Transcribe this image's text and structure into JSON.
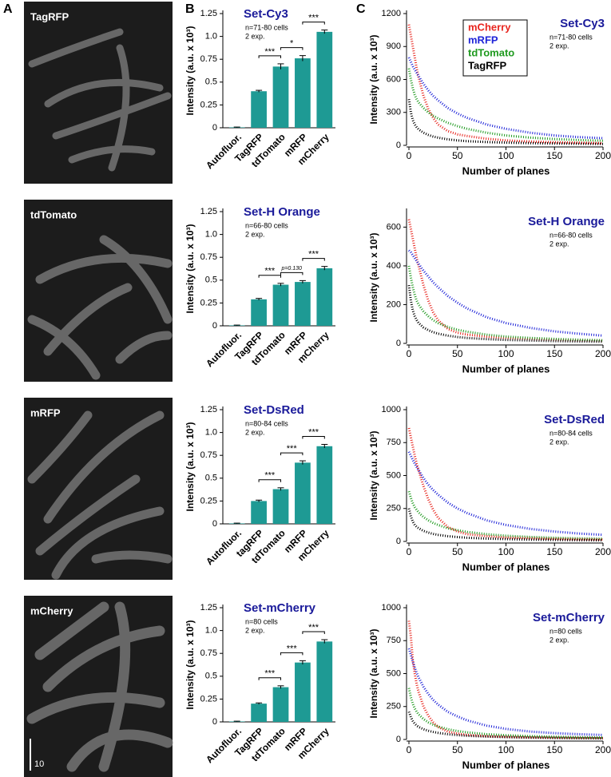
{
  "panels": [
    "A",
    "B",
    "C"
  ],
  "images": [
    {
      "label": "TagRFP"
    },
    {
      "label": "tdTomato"
    },
    {
      "label": "mRFP"
    },
    {
      "label": "mCherry"
    }
  ],
  "scale_bar": "10",
  "chart_data": [
    {
      "type": "bar",
      "title": "Set-Cy3",
      "notes": [
        "n=71-80 cells",
        "2 exp."
      ],
      "ylabel": "Intensity (a.u. x 10³)",
      "categories": [
        "Autofluor.",
        "TagRFP",
        "tdTomato",
        "mRFP",
        "mCherry"
      ],
      "values": [
        0.005,
        0.4,
        0.67,
        0.76,
        1.05
      ],
      "errors": [
        0.003,
        0.01,
        0.03,
        0.03,
        0.02
      ],
      "color": "#1e9a94",
      "ylim": [
        0,
        1.25
      ],
      "yticks": [
        0,
        0.25,
        0.5,
        0.75,
        {
          "value": 1,
          "label": "1.0"
        },
        1.25
      ],
      "significance": [
        {
          "between": [
            1,
            2
          ],
          "label": "***"
        },
        {
          "between": [
            2,
            3
          ],
          "label": "*"
        },
        {
          "between": [
            3,
            4
          ],
          "label": "***"
        }
      ]
    },
    {
      "type": "bar",
      "title": "Set-H Orange",
      "notes": [
        "n=66-80 cells",
        "2 exp."
      ],
      "ylabel": "Intensity (a.u. x 10³)",
      "categories": [
        "Autofluor.",
        "TagRFP",
        "tdTomato",
        "mRFP",
        "mCherry"
      ],
      "values": [
        0.005,
        0.29,
        0.45,
        0.48,
        0.63
      ],
      "errors": [
        0.003,
        0.01,
        0.015,
        0.015,
        0.02
      ],
      "color": "#1e9a94",
      "ylim": [
        0,
        1.25
      ],
      "yticks": [
        0,
        0.25,
        0.5,
        0.75,
        {
          "value": 1,
          "label": "1.0"
        },
        1.25
      ],
      "significance": [
        {
          "between": [
            1,
            2
          ],
          "label": "***"
        },
        {
          "between": [
            2,
            3
          ],
          "label": "p=0.130"
        },
        {
          "between": [
            3,
            4
          ],
          "label": "***"
        }
      ]
    },
    {
      "type": "bar",
      "title": "Set-DsRed",
      "notes": [
        "n=80-84 cells",
        "2 exp."
      ],
      "ylabel": "Intensity (a.u. x 10³)",
      "categories": [
        "Autofluor.",
        "tagRFP",
        "tdTomato",
        "mRFP",
        "mCherry"
      ],
      "values": [
        0.005,
        0.25,
        0.38,
        0.67,
        0.85
      ],
      "errors": [
        0.003,
        0.01,
        0.015,
        0.02,
        0.02
      ],
      "color": "#1e9a94",
      "ylim": [
        0,
        1.25
      ],
      "yticks": [
        0,
        0.25,
        0.5,
        0.75,
        {
          "value": 1,
          "label": "1.0"
        },
        1.25
      ],
      "significance": [
        {
          "between": [
            1,
            2
          ],
          "label": "***"
        },
        {
          "between": [
            2,
            3
          ],
          "label": "***"
        },
        {
          "between": [
            3,
            4
          ],
          "label": "***"
        }
      ]
    },
    {
      "type": "bar",
      "title": "Set-mCherry",
      "notes": [
        "n=80 cells",
        "2 exp."
      ],
      "ylabel": "Intensity (a.u. x 10³)",
      "categories": [
        "Autofluor.",
        "TagRFP",
        "tdTomato",
        "mRFP",
        "mCherry"
      ],
      "values": [
        0.005,
        0.2,
        0.38,
        0.65,
        0.88
      ],
      "errors": [
        0.003,
        0.008,
        0.015,
        0.02,
        0.02
      ],
      "color": "#1e9a94",
      "ylim": [
        0,
        1.25
      ],
      "yticks": [
        0,
        0.25,
        0.5,
        0.75,
        {
          "value": 1,
          "label": "1.0"
        },
        1.25
      ],
      "significance": [
        {
          "between": [
            1,
            2
          ],
          "label": "***"
        },
        {
          "between": [
            2,
            3
          ],
          "label": "***"
        },
        {
          "between": [
            3,
            4
          ],
          "label": "***"
        }
      ]
    },
    {
      "type": "line",
      "title": "Set-Cy3",
      "notes": [
        "n=71-80 cells",
        "2 exp."
      ],
      "xlabel": "Number of planes",
      "ylabel": "Intensity (a.u. x 10³)",
      "legend": true,
      "xlim": [
        0,
        200
      ],
      "xticks": [
        0,
        50,
        100,
        150,
        200
      ],
      "ylim": [
        0,
        1200
      ],
      "yticks": [
        0,
        300,
        600,
        900,
        1200
      ],
      "x": [
        0,
        2,
        4,
        6,
        8,
        10,
        15,
        20,
        25,
        30,
        40,
        50,
        60,
        80,
        100,
        125,
        150,
        175,
        200
      ],
      "series": [
        {
          "name": "mCherry",
          "color": "#e8261f",
          "values": [
            1100,
            1000,
            900,
            800,
            700,
            620,
            450,
            330,
            250,
            190,
            130,
            100,
            85,
            60,
            45,
            35,
            28,
            24,
            20
          ]
        },
        {
          "name": "mRFP",
          "color": "#1f24d8",
          "values": [
            800,
            760,
            720,
            690,
            660,
            630,
            560,
            500,
            450,
            410,
            340,
            290,
            250,
            190,
            150,
            115,
            90,
            75,
            65
          ]
        },
        {
          "name": "tdTomato",
          "color": "#1f9a1f",
          "values": [
            700,
            600,
            520,
            460,
            420,
            390,
            340,
            300,
            270,
            245,
            205,
            175,
            150,
            115,
            90,
            70,
            57,
            48,
            42
          ]
        },
        {
          "name": "TagRFP",
          "color": "#000000",
          "values": [
            420,
            300,
            230,
            190,
            165,
            145,
            115,
            95,
            80,
            70,
            55,
            45,
            38,
            30,
            25,
            20,
            17,
            15,
            13
          ]
        }
      ]
    },
    {
      "type": "line",
      "title": "Set-H Orange",
      "notes": [
        "n=66-80 cells",
        "2 exp."
      ],
      "xlabel": "Number of planes",
      "ylabel": "Intensity (a.u. x 10³)",
      "legend": false,
      "xlim": [
        0,
        200
      ],
      "xticks": [
        0,
        50,
        100,
        150,
        200
      ],
      "ylim": [
        0,
        680
      ],
      "yticks": [
        0,
        200,
        400,
        600
      ],
      "x": [
        0,
        2,
        4,
        6,
        8,
        10,
        15,
        20,
        25,
        30,
        40,
        50,
        60,
        80,
        100,
        125,
        150,
        175,
        200
      ],
      "series": [
        {
          "color": "#e8261f",
          "values": [
            640,
            590,
            540,
            490,
            440,
            400,
            300,
            220,
            160,
            120,
            75,
            55,
            45,
            35,
            28,
            22,
            18,
            15,
            13
          ]
        },
        {
          "color": "#1f24d8",
          "values": [
            480,
            470,
            455,
            440,
            425,
            410,
            375,
            345,
            315,
            290,
            245,
            210,
            180,
            135,
            105,
            80,
            62,
            50,
            40
          ]
        },
        {
          "color": "#1f9a1f",
          "values": [
            400,
            340,
            290,
            250,
            220,
            200,
            165,
            140,
            120,
            105,
            85,
            70,
            60,
            45,
            35,
            28,
            23,
            19,
            16
          ]
        },
        {
          "color": "#000000",
          "values": [
            300,
            220,
            170,
            140,
            120,
            105,
            82,
            68,
            58,
            50,
            40,
            33,
            28,
            22,
            18,
            15,
            12,
            10,
            9
          ]
        }
      ]
    },
    {
      "type": "line",
      "title": "Set-DsRed",
      "notes": [
        "n=80-84 cells",
        "2 exp."
      ],
      "xlabel": "Number of planes",
      "ylabel": "Intensity (a.u. x 10³)",
      "legend": false,
      "xlim": [
        0,
        200
      ],
      "xticks": [
        0,
        50,
        100,
        150,
        200
      ],
      "ylim": [
        0,
        1000
      ],
      "yticks": [
        0,
        250,
        500,
        750,
        1000
      ],
      "x": [
        0,
        2,
        4,
        6,
        8,
        10,
        15,
        20,
        25,
        30,
        40,
        50,
        60,
        80,
        100,
        125,
        150,
        175,
        200
      ],
      "series": [
        {
          "color": "#e8261f",
          "values": [
            860,
            790,
            720,
            650,
            590,
            540,
            420,
            320,
            240,
            180,
            110,
            75,
            55,
            40,
            30,
            25,
            20,
            17,
            15
          ]
        },
        {
          "color": "#1f24d8",
          "values": [
            680,
            650,
            620,
            590,
            565,
            540,
            480,
            430,
            390,
            355,
            295,
            250,
            215,
            160,
            125,
            95,
            75,
            60,
            50
          ]
        },
        {
          "color": "#1f9a1f",
          "values": [
            380,
            330,
            290,
            260,
            240,
            220,
            185,
            160,
            140,
            125,
            100,
            85,
            72,
            55,
            43,
            34,
            28,
            23,
            20
          ]
        },
        {
          "color": "#000000",
          "values": [
            250,
            190,
            150,
            125,
            110,
            100,
            80,
            67,
            57,
            50,
            40,
            33,
            28,
            22,
            18,
            14,
            12,
            10,
            9
          ]
        }
      ]
    },
    {
      "type": "line",
      "title": "Set-mCherry",
      "notes": [
        "n=80 cells",
        "2 exp."
      ],
      "xlabel": "Number of planes",
      "ylabel": "Intensity (a.u. x 10³)",
      "legend": false,
      "xlim": [
        0,
        200
      ],
      "xticks": [
        0,
        50,
        100,
        150,
        200
      ],
      "ylim": [
        0,
        1000
      ],
      "yticks": [
        0,
        250,
        500,
        750,
        1000
      ],
      "x": [
        0,
        2,
        4,
        6,
        8,
        10,
        15,
        20,
        25,
        30,
        40,
        50,
        60,
        80,
        100,
        125,
        150,
        175,
        200
      ],
      "series": [
        {
          "color": "#e8261f",
          "values": [
            900,
            780,
            600,
            500,
            420,
            360,
            250,
            180,
            130,
            95,
            60,
            45,
            35,
            25,
            20,
            16,
            13,
            11,
            10
          ]
        },
        {
          "color": "#1f24d8",
          "values": [
            690,
            640,
            590,
            545,
            505,
            470,
            400,
            345,
            300,
            265,
            210,
            175,
            145,
            105,
            80,
            60,
            48,
            40,
            34
          ]
        },
        {
          "color": "#1f9a1f",
          "values": [
            390,
            320,
            270,
            235,
            210,
            190,
            155,
            130,
            112,
            98,
            78,
            64,
            54,
            40,
            32,
            25,
            20,
            17,
            15
          ]
        },
        {
          "color": "#000000",
          "values": [
            210,
            170,
            140,
            120,
            105,
            95,
            78,
            66,
            57,
            50,
            40,
            33,
            28,
            22,
            18,
            14,
            12,
            10,
            9
          ]
        }
      ]
    }
  ]
}
